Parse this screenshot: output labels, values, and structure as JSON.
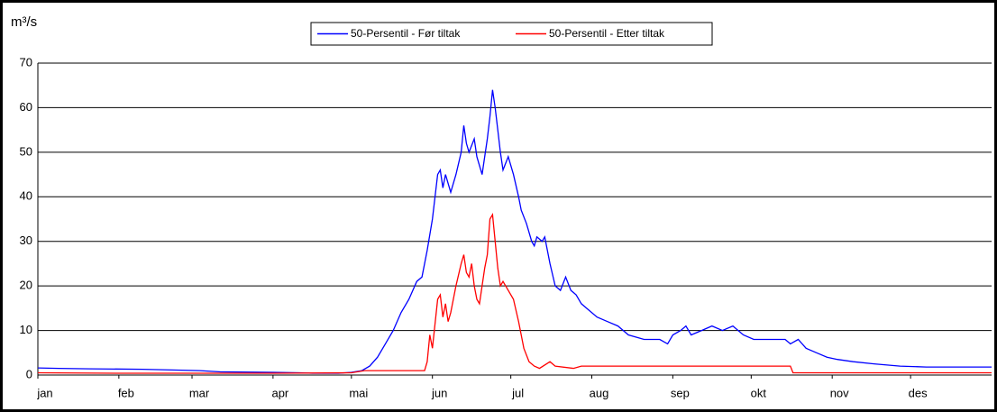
{
  "chart_data": {
    "type": "line",
    "y_label": "m³/s",
    "xlim": [
      0,
      365
    ],
    "xticks": [
      {
        "value": 0,
        "label": "jan"
      },
      {
        "value": 31,
        "label": "feb"
      },
      {
        "value": 59,
        "label": "mar"
      },
      {
        "value": 90,
        "label": "apr"
      },
      {
        "value": 120,
        "label": "mai"
      },
      {
        "value": 151,
        "label": "jun"
      },
      {
        "value": 181,
        "label": "jul"
      },
      {
        "value": 212,
        "label": "aug"
      },
      {
        "value": 243,
        "label": "sep"
      },
      {
        "value": 273,
        "label": "okt"
      },
      {
        "value": 304,
        "label": "nov"
      },
      {
        "value": 334,
        "label": "des"
      }
    ],
    "ylim": [
      0,
      70
    ],
    "yticks": [
      0,
      10,
      20,
      30,
      40,
      50,
      60,
      70
    ],
    "grid": true,
    "legend": "top",
    "series": [
      {
        "name": "50-Persentil - Før tiltak",
        "color": "#0000ff",
        "x": [
          0,
          8,
          20,
          40,
          55,
          62,
          70,
          90,
          100,
          105,
          115,
          120,
          124,
          127,
          130,
          133,
          136,
          139,
          142,
          145,
          147,
          149,
          151,
          152,
          153,
          154,
          155,
          156,
          158,
          160,
          162,
          163,
          164,
          165,
          167,
          168,
          170,
          172,
          173,
          174,
          175,
          176,
          177,
          178,
          180,
          182,
          184,
          185,
          187,
          189,
          190,
          191,
          193,
          194,
          196,
          198,
          200,
          202,
          204,
          206,
          208,
          210,
          214,
          218,
          222,
          226,
          232,
          238,
          241,
          243,
          246,
          248,
          250,
          254,
          258,
          262,
          266,
          270,
          274,
          280,
          286,
          288,
          291,
          294,
          298,
          302,
          306,
          312,
          320,
          330,
          340,
          365
        ],
        "values": [
          1.6,
          1.5,
          1.4,
          1.3,
          1.1,
          1.0,
          0.7,
          0.6,
          0.5,
          0.4,
          0.4,
          0.6,
          1,
          2,
          4,
          7,
          10,
          14,
          17,
          21,
          22,
          28,
          35,
          40,
          45,
          46,
          42,
          45,
          41,
          45,
          50,
          56,
          52,
          50,
          53,
          49,
          45,
          53,
          58,
          64,
          60,
          55,
          50,
          46,
          49,
          45,
          40,
          37,
          34,
          30,
          29,
          31,
          30,
          31,
          25,
          20,
          19,
          22,
          19,
          18,
          16,
          15,
          13,
          12,
          11,
          9,
          8,
          8,
          7,
          9,
          10,
          11,
          9,
          10,
          11,
          10,
          11,
          9,
          8,
          8,
          8,
          7,
          8,
          6,
          5,
          4,
          3.5,
          3,
          2.5,
          2,
          1.8,
          1.8
        ]
      },
      {
        "name": "50-Persentil - Etter tiltak",
        "color": "#ff0000",
        "x": [
          0,
          30,
          60,
          90,
          120,
          125,
          148,
          149,
          150,
          151,
          153,
          154,
          155,
          156,
          157,
          158,
          160,
          162,
          163,
          164,
          165,
          166,
          167,
          168,
          169,
          170,
          171,
          172,
          173,
          174,
          175,
          176,
          177,
          178,
          180,
          182,
          184,
          186,
          188,
          190,
          192,
          196,
          198,
          205,
          208,
          288,
          289,
          365
        ],
        "values": [
          0.5,
          0.4,
          0.4,
          0.4,
          0.5,
          1,
          1,
          3,
          9,
          6,
          17,
          18,
          13,
          16,
          12,
          14,
          20,
          25,
          27,
          23,
          22,
          25,
          20,
          17,
          16,
          20,
          24,
          27,
          35,
          36,
          30,
          24,
          20,
          21,
          19,
          17,
          12,
          6,
          3,
          2,
          1.5,
          3,
          2,
          1.5,
          2,
          2,
          0.5,
          0.5
        ]
      }
    ]
  }
}
